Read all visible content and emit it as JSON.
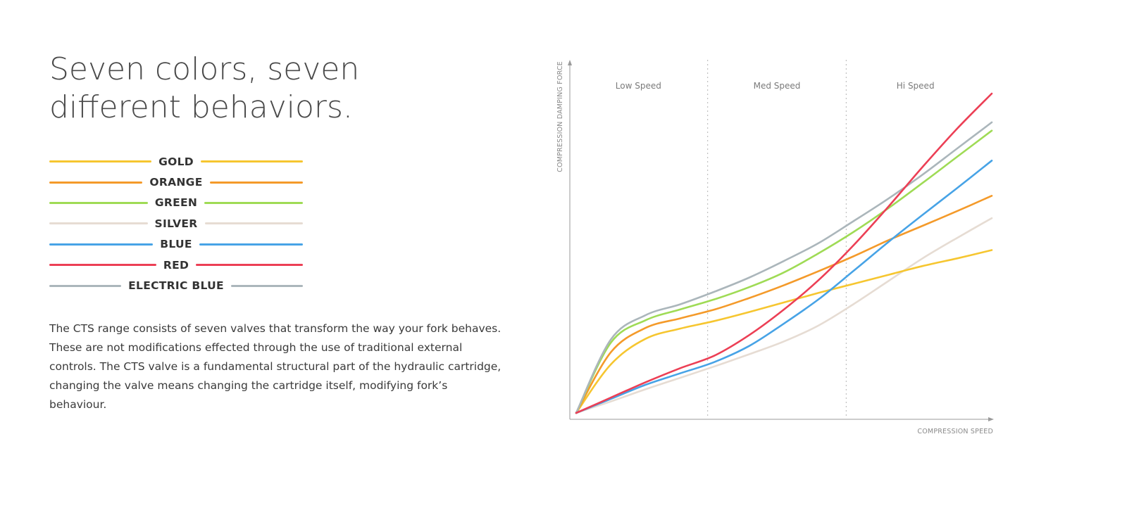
{
  "headline": "Seven colors, seven different behaviors.",
  "description": "The CTS range consists of seven valves that transform the way your fork behaves. These are not modifications effected through the use of traditional external controls. The CTS valve is a fundamental structural part of the hydraulic cartridge, changing the valve means changing the cartridge itself, modifying fork’s behaviour.",
  "legend": [
    {
      "label": "GOLD",
      "color": "#f6c630"
    },
    {
      "label": "ORANGE",
      "color": "#f49a2a"
    },
    {
      "label": "GREEN",
      "color": "#9fdb55"
    },
    {
      "label": "SILVER",
      "color": "#e6dcd3"
    },
    {
      "label": "BLUE",
      "color": "#47a3e6"
    },
    {
      "label": "RED",
      "color": "#ec3f55"
    },
    {
      "label": "ELECTRIC BLUE",
      "color": "#abb6bb"
    }
  ],
  "chart_data": {
    "type": "line",
    "title": "",
    "xlabel": "COMPRESSION SPEED",
    "ylabel": "COMPRESSION DAMPING FORCE",
    "xlim": [
      0,
      3
    ],
    "ylim": [
      0,
      5
    ],
    "grid": false,
    "ticks_shown": false,
    "zones": [
      {
        "label": "Low Speed",
        "from": 0,
        "to": 1
      },
      {
        "label": "Med Speed",
        "from": 1,
        "to": 2
      },
      {
        "label": "Hi Speed",
        "from": 2,
        "to": 3
      }
    ],
    "x": [
      0,
      0.25,
      0.5,
      0.75,
      1.0,
      1.25,
      1.5,
      1.75,
      2.0,
      2.25,
      2.5,
      2.75,
      3.0
    ],
    "series": [
      {
        "name": "GOLD",
        "color": "#f6c630",
        "values": [
          0,
          0.76,
          1.16,
          1.32,
          1.44,
          1.58,
          1.73,
          1.88,
          2.02,
          2.16,
          2.3,
          2.42,
          2.55
        ]
      },
      {
        "name": "ORANGE",
        "color": "#f49a2a",
        "values": [
          0,
          0.95,
          1.33,
          1.48,
          1.62,
          1.8,
          2.0,
          2.22,
          2.45,
          2.7,
          2.93,
          3.16,
          3.4
        ]
      },
      {
        "name": "GREEN",
        "color": "#9fdb55",
        "values": [
          0,
          1.1,
          1.45,
          1.62,
          1.78,
          1.97,
          2.2,
          2.5,
          2.83,
          3.2,
          3.6,
          4.01,
          4.42
        ]
      },
      {
        "name": "SILVER",
        "color": "#e6dcd3",
        "values": [
          0,
          0.18,
          0.37,
          0.55,
          0.73,
          0.92,
          1.12,
          1.37,
          1.7,
          2.06,
          2.42,
          2.74,
          3.05
        ]
      },
      {
        "name": "BLUE",
        "color": "#47a3e6",
        "values": [
          0,
          0.22,
          0.44,
          0.62,
          0.8,
          1.05,
          1.4,
          1.78,
          2.22,
          2.67,
          3.1,
          3.52,
          3.95
        ]
      },
      {
        "name": "RED",
        "color": "#ec3f55",
        "values": [
          0,
          0.24,
          0.48,
          0.7,
          0.9,
          1.22,
          1.62,
          2.08,
          2.62,
          3.22,
          3.85,
          4.45,
          5.0
        ]
      },
      {
        "name": "ELECTRIC BLUE",
        "color": "#abb6bb",
        "values": [
          0,
          1.15,
          1.53,
          1.7,
          1.9,
          2.12,
          2.38,
          2.66,
          3.0,
          3.35,
          3.73,
          4.14,
          4.55
        ]
      }
    ]
  }
}
